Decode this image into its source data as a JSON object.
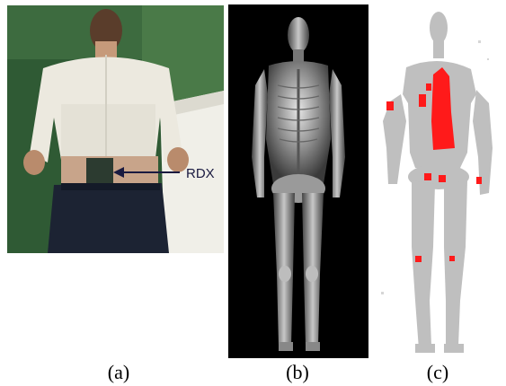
{
  "panels": [
    {
      "id": "a",
      "caption": "(a)",
      "annotation": "RDX"
    },
    {
      "id": "b",
      "caption": "(b)"
    },
    {
      "id": "c",
      "caption": "(c)"
    }
  ],
  "colors": {
    "photo_background": "#2f5a34",
    "shirt": "#ece9df",
    "backscatter_background": "#000000",
    "silhouette_gray": "#bfbfbf",
    "threat_highlight": "#ff1a1a"
  }
}
